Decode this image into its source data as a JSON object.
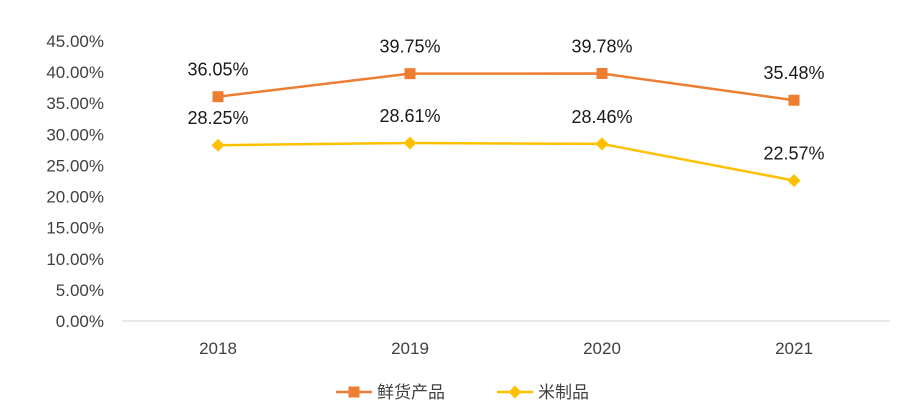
{
  "chart_data": {
    "type": "line",
    "title": "",
    "xlabel": "",
    "ylabel": "",
    "categories": [
      "2018",
      "2019",
      "2020",
      "2021"
    ],
    "y_ticks": [
      "0.00%",
      "5.00%",
      "10.00%",
      "15.00%",
      "20.00%",
      "25.00%",
      "30.00%",
      "35.00%",
      "40.00%",
      "45.00%"
    ],
    "ylim": [
      0,
      45
    ],
    "grid": false,
    "legend": "bottom",
    "series": [
      {
        "name": "鲜货产品",
        "values": [
          36.05,
          39.75,
          39.78,
          35.48
        ],
        "labels": [
          "36.05%",
          "39.75%",
          "39.78%",
          "35.48%"
        ],
        "color": "#ED7D31",
        "marker": "square"
      },
      {
        "name": "米制品",
        "values": [
          28.25,
          28.61,
          28.46,
          22.57
        ],
        "labels": [
          "28.25%",
          "28.61%",
          "28.46%",
          "22.57%"
        ],
        "color": "#FFC000",
        "marker": "diamond"
      }
    ]
  }
}
